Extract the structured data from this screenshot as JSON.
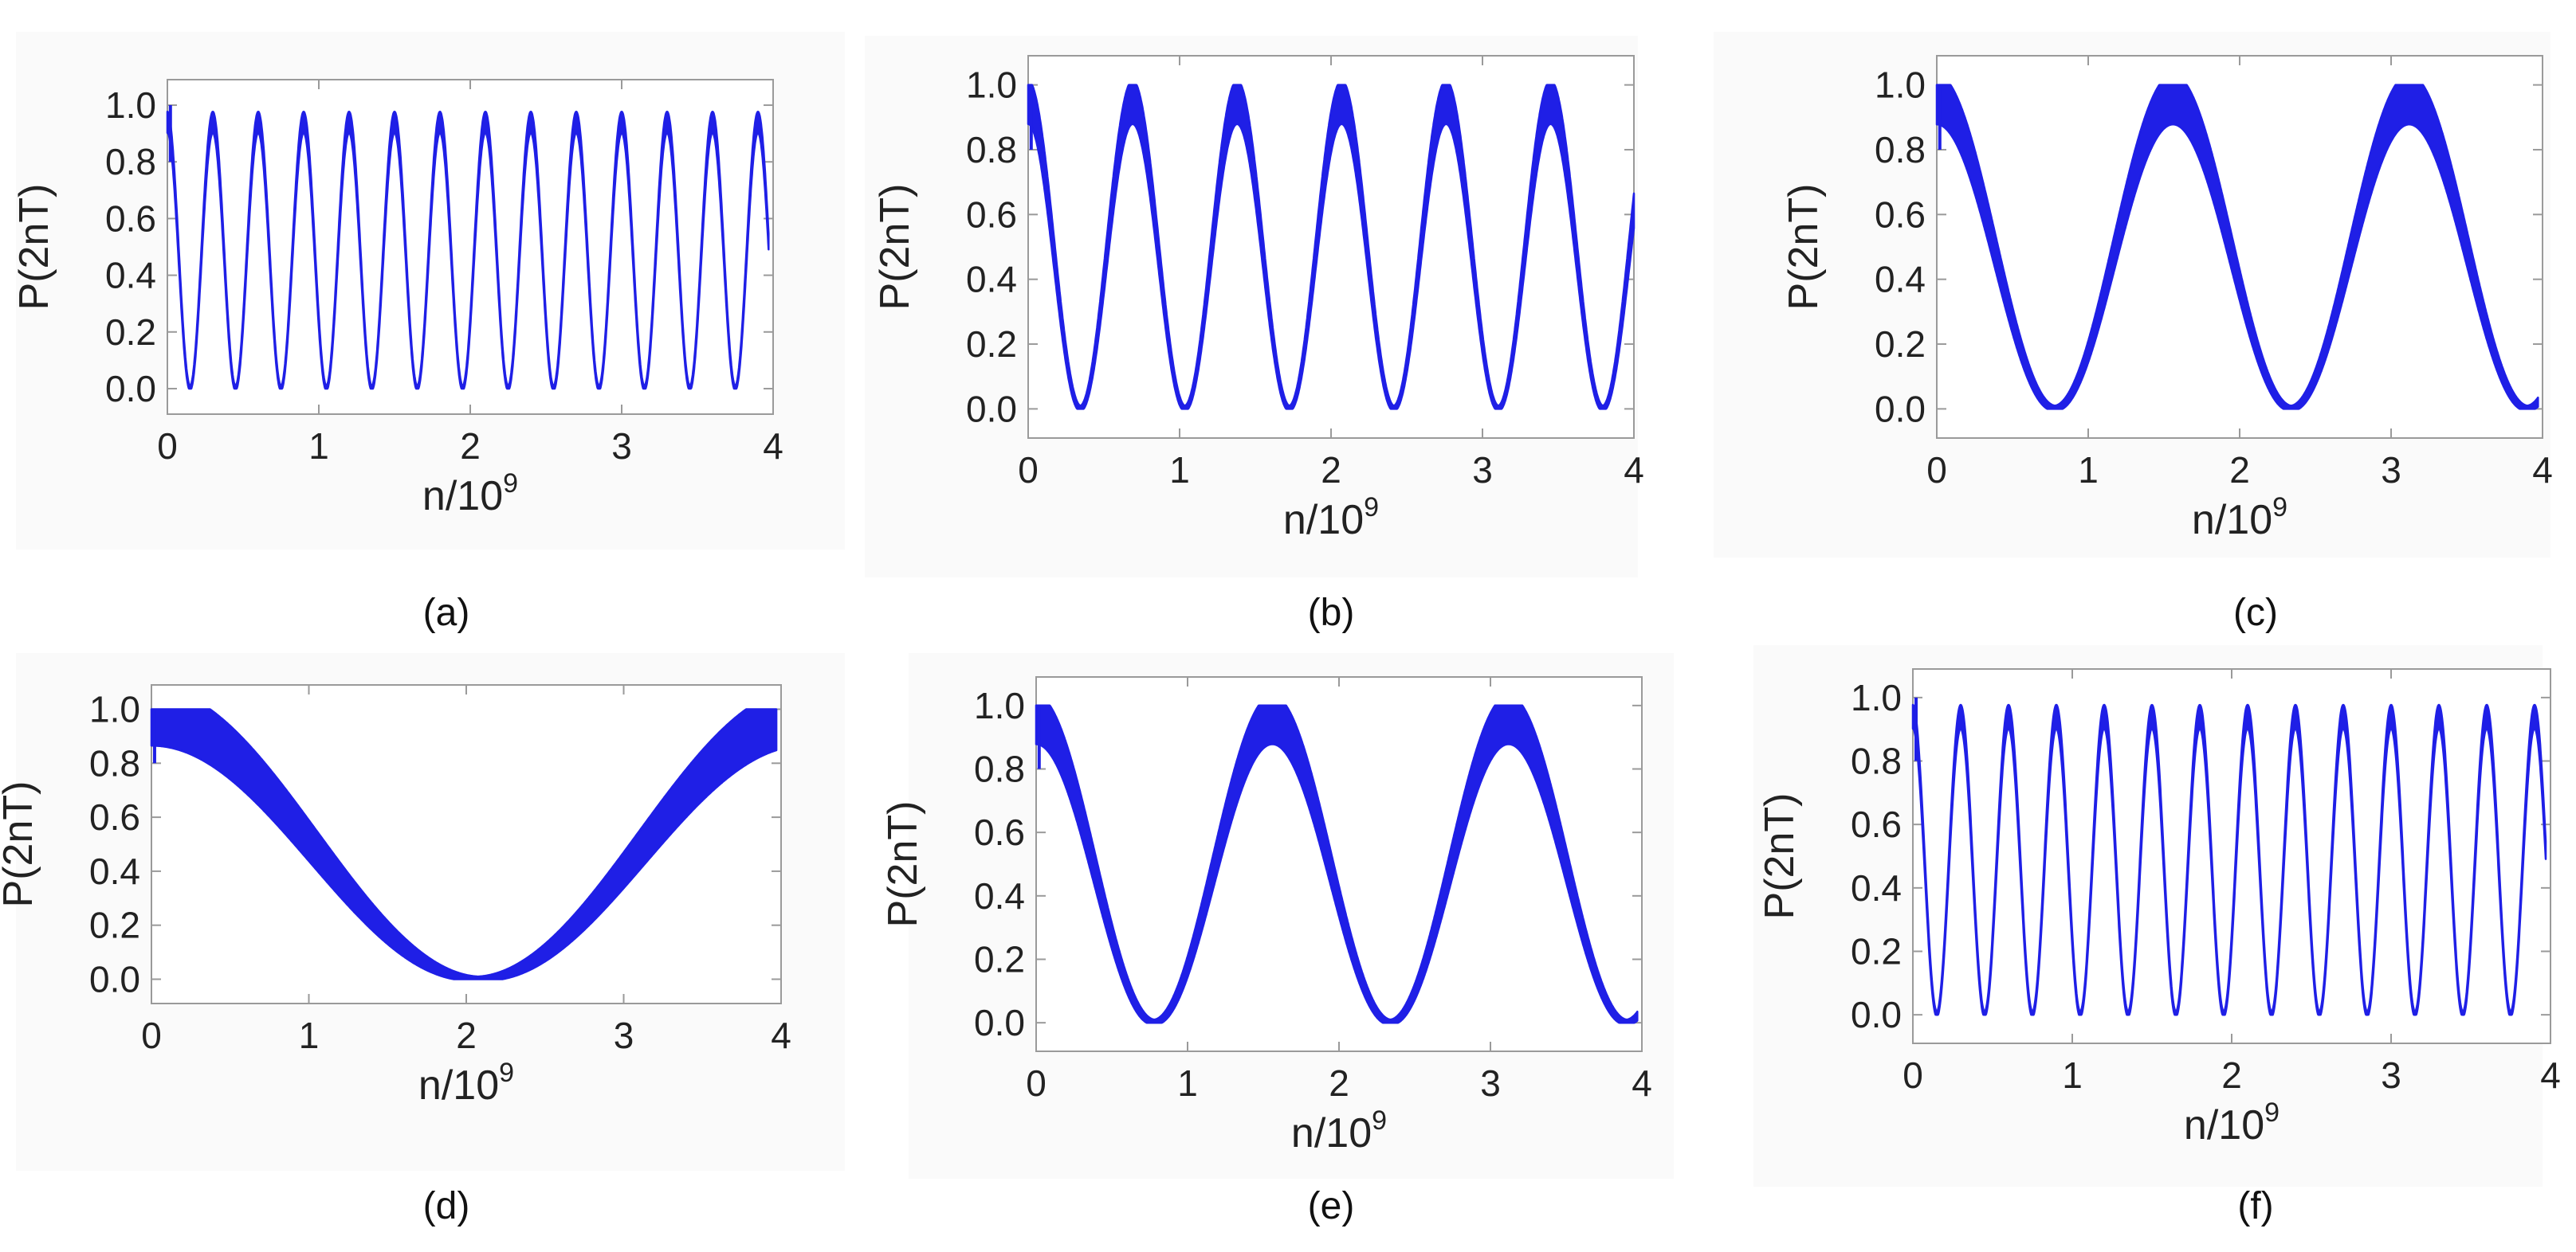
{
  "colors": {
    "curve": "#1f1fe6",
    "frame": "#9a9a9a",
    "text": "#222222",
    "bg_panel": "#fafafa"
  },
  "panel_captions": [
    "(a)",
    "(b)",
    "(c)",
    "(d)",
    "(e)",
    "(f)"
  ],
  "chart_data": [
    {
      "id": "a",
      "type": "line",
      "xlabel": "n/10",
      "xlabel_sup": "9",
      "ylabel": "P(2nT)",
      "xlim": [
        0,
        4
      ],
      "ylim": [
        0,
        1
      ],
      "xticks": [
        "0",
        "1",
        "2",
        "3",
        "4"
      ],
      "yticks": [
        "0.0",
        "0.2",
        "0.4",
        "0.6",
        "0.8",
        "1.0"
      ],
      "series": [
        {
          "period": 0.3,
          "band_width": 0.06,
          "peak": 0.94,
          "x_end": 3.97
        }
      ]
    },
    {
      "id": "b",
      "type": "line",
      "xlabel": "n/10",
      "xlabel_sup": "9",
      "ylabel": "P(2nT)",
      "xlim": [
        0,
        4
      ],
      "ylim": [
        0,
        1
      ],
      "xticks": [
        "0",
        "1",
        "2",
        "3",
        "4"
      ],
      "yticks": [
        "0.0",
        "0.2",
        "0.4",
        "0.6",
        "0.8",
        "1.0"
      ],
      "series": [
        {
          "period": 0.69,
          "band_width": 0.12,
          "peak": 0.95,
          "x_end": 4.0
        }
      ]
    },
    {
      "id": "c",
      "type": "line",
      "xlabel": "n/10",
      "xlabel_sup": "9",
      "ylabel": "P(2nT)",
      "xlim": [
        0,
        4
      ],
      "ylim": [
        0,
        1
      ],
      "xticks": [
        "0",
        "1",
        "2",
        "3",
        "4"
      ],
      "yticks": [
        "0.0",
        "0.2",
        "0.4",
        "0.6",
        "0.8",
        "1.0"
      ],
      "series": [
        {
          "period": 1.56,
          "band_width": 0.14,
          "peak": 0.96,
          "x_end": 3.97
        }
      ]
    },
    {
      "id": "d",
      "type": "line",
      "xlabel": "n/10",
      "xlabel_sup": "9",
      "ylabel": "P(2nT)",
      "xlim": [
        0,
        4
      ],
      "ylim": [
        0,
        1
      ],
      "xticks": [
        "0",
        "1",
        "2",
        "3",
        "4"
      ],
      "yticks": [
        "0.0",
        "0.2",
        "0.4",
        "0.6",
        "0.8",
        "1.0"
      ],
      "series": [
        {
          "period": 4.15,
          "band_width": 0.2,
          "peak": 0.98,
          "x_end": 3.97
        }
      ]
    },
    {
      "id": "e",
      "type": "line",
      "xlabel": "n/10",
      "xlabel_sup": "9",
      "ylabel": "P(2nT)",
      "xlim": [
        0,
        4
      ],
      "ylim": [
        0,
        1
      ],
      "xticks": [
        "0",
        "1",
        "2",
        "3",
        "4"
      ],
      "yticks": [
        "0.0",
        "0.2",
        "0.4",
        "0.6",
        "0.8",
        "1.0"
      ],
      "series": [
        {
          "period": 1.56,
          "band_width": 0.14,
          "peak": 0.96,
          "x_end": 3.97
        }
      ]
    },
    {
      "id": "f",
      "type": "line",
      "xlabel": "n/10",
      "xlabel_sup": "9",
      "ylabel": "P(2nT)",
      "xlim": [
        0,
        4
      ],
      "ylim": [
        0,
        1
      ],
      "xticks": [
        "0",
        "1",
        "2",
        "3",
        "4"
      ],
      "yticks": [
        "0.0",
        "0.2",
        "0.4",
        "0.6",
        "0.8",
        "1.0"
      ],
      "series": [
        {
          "period": 0.3,
          "band_width": 0.06,
          "peak": 0.94,
          "x_end": 3.97
        }
      ]
    }
  ]
}
